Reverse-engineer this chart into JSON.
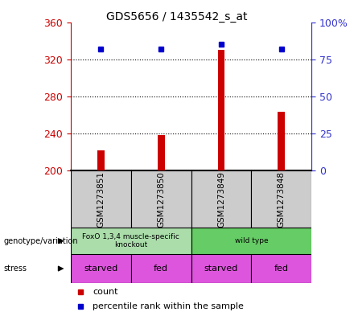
{
  "title": "GDS5656 / 1435542_s_at",
  "samples": [
    "GSM1273851",
    "GSM1273850",
    "GSM1273849",
    "GSM1273848"
  ],
  "counts": [
    222,
    238,
    330,
    263
  ],
  "percentile_ranks": [
    82,
    82,
    85,
    82
  ],
  "ylim_left": [
    200,
    360
  ],
  "ylim_right": [
    0,
    100
  ],
  "yticks_left": [
    200,
    240,
    280,
    320,
    360
  ],
  "yticks_right": [
    0,
    25,
    50,
    75,
    100
  ],
  "ytick_labels_right": [
    "0",
    "25",
    "50",
    "75",
    "100%"
  ],
  "bar_color": "#cc0000",
  "dot_color": "#0000cc",
  "genotype_groups": [
    {
      "label": "FoxO 1,3,4 muscle-specific\nknockout",
      "start": 0,
      "end": 2,
      "color": "#aaddaa"
    },
    {
      "label": "wild type",
      "start": 2,
      "end": 4,
      "color": "#66cc66"
    }
  ],
  "stress_labels": [
    "starved",
    "fed",
    "starved",
    "fed"
  ],
  "stress_color": "#dd55dd",
  "left_axis_color": "#cc0000",
  "right_axis_color": "#3333cc",
  "sample_box_color": "#cccccc",
  "bar_width": 0.12
}
